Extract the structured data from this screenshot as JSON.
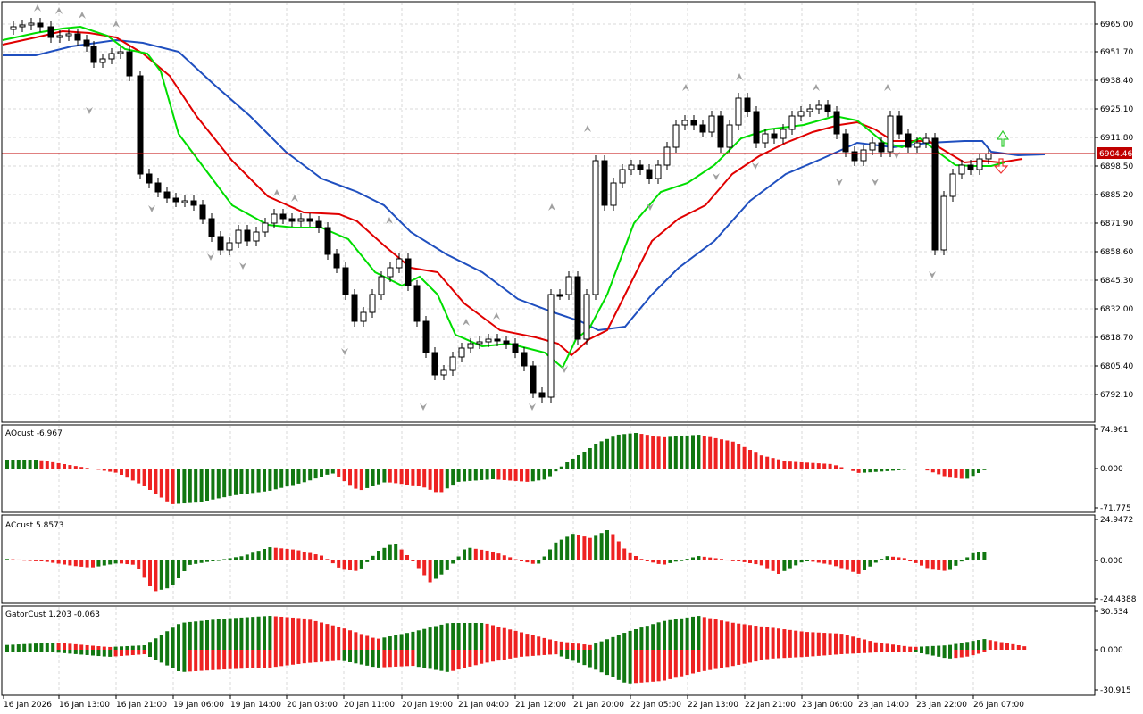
{
  "colors": {
    "jaw": "#1f4fbf",
    "teeth": "#e00000",
    "lips": "#00dd00",
    "up": "#117711",
    "down": "#ee2222",
    "price_line": "#c00000",
    "grid": "#d8d8d8",
    "fractal": "#a0a0a0"
  },
  "main": {
    "price_axis": [
      "6965.00",
      "6951.70",
      "6938.40",
      "6925.10",
      "6911.80",
      "6898.50",
      "6885.20",
      "6871.90",
      "6858.60",
      "6845.30",
      "6832.00",
      "6818.70",
      "6805.40",
      "6792.10"
    ],
    "current_price": "6904.46"
  },
  "ao": {
    "label": "AOcust -6.967",
    "axis": [
      "74.961",
      "0.000",
      "-71.775"
    ]
  },
  "ac": {
    "label": "ACcust 5.8573",
    "axis": [
      "24.9472",
      "0.000",
      "-24.4388"
    ]
  },
  "gator": {
    "label": "GatorCust 1.203 -0.063",
    "axis": [
      "30.534",
      "0.000",
      "-30.915"
    ]
  },
  "time_axis": [
    "16 Jan 2026",
    "16 Jan 13:00",
    "16 Jan 21:00",
    "19 Jan 06:00",
    "19 Jan 14:00",
    "20 Jan 03:00",
    "20 Jan 11:00",
    "20 Jan 19:00",
    "21 Jan 04:00",
    "21 Jan 12:00",
    "21 Jan 20:00",
    "22 Jan 05:00",
    "22 Jan 13:00",
    "22 Jan 21:00",
    "23 Jan 06:00",
    "23 Jan 14:00",
    "23 Jan 22:00",
    "26 Jan 07:00"
  ]
}
